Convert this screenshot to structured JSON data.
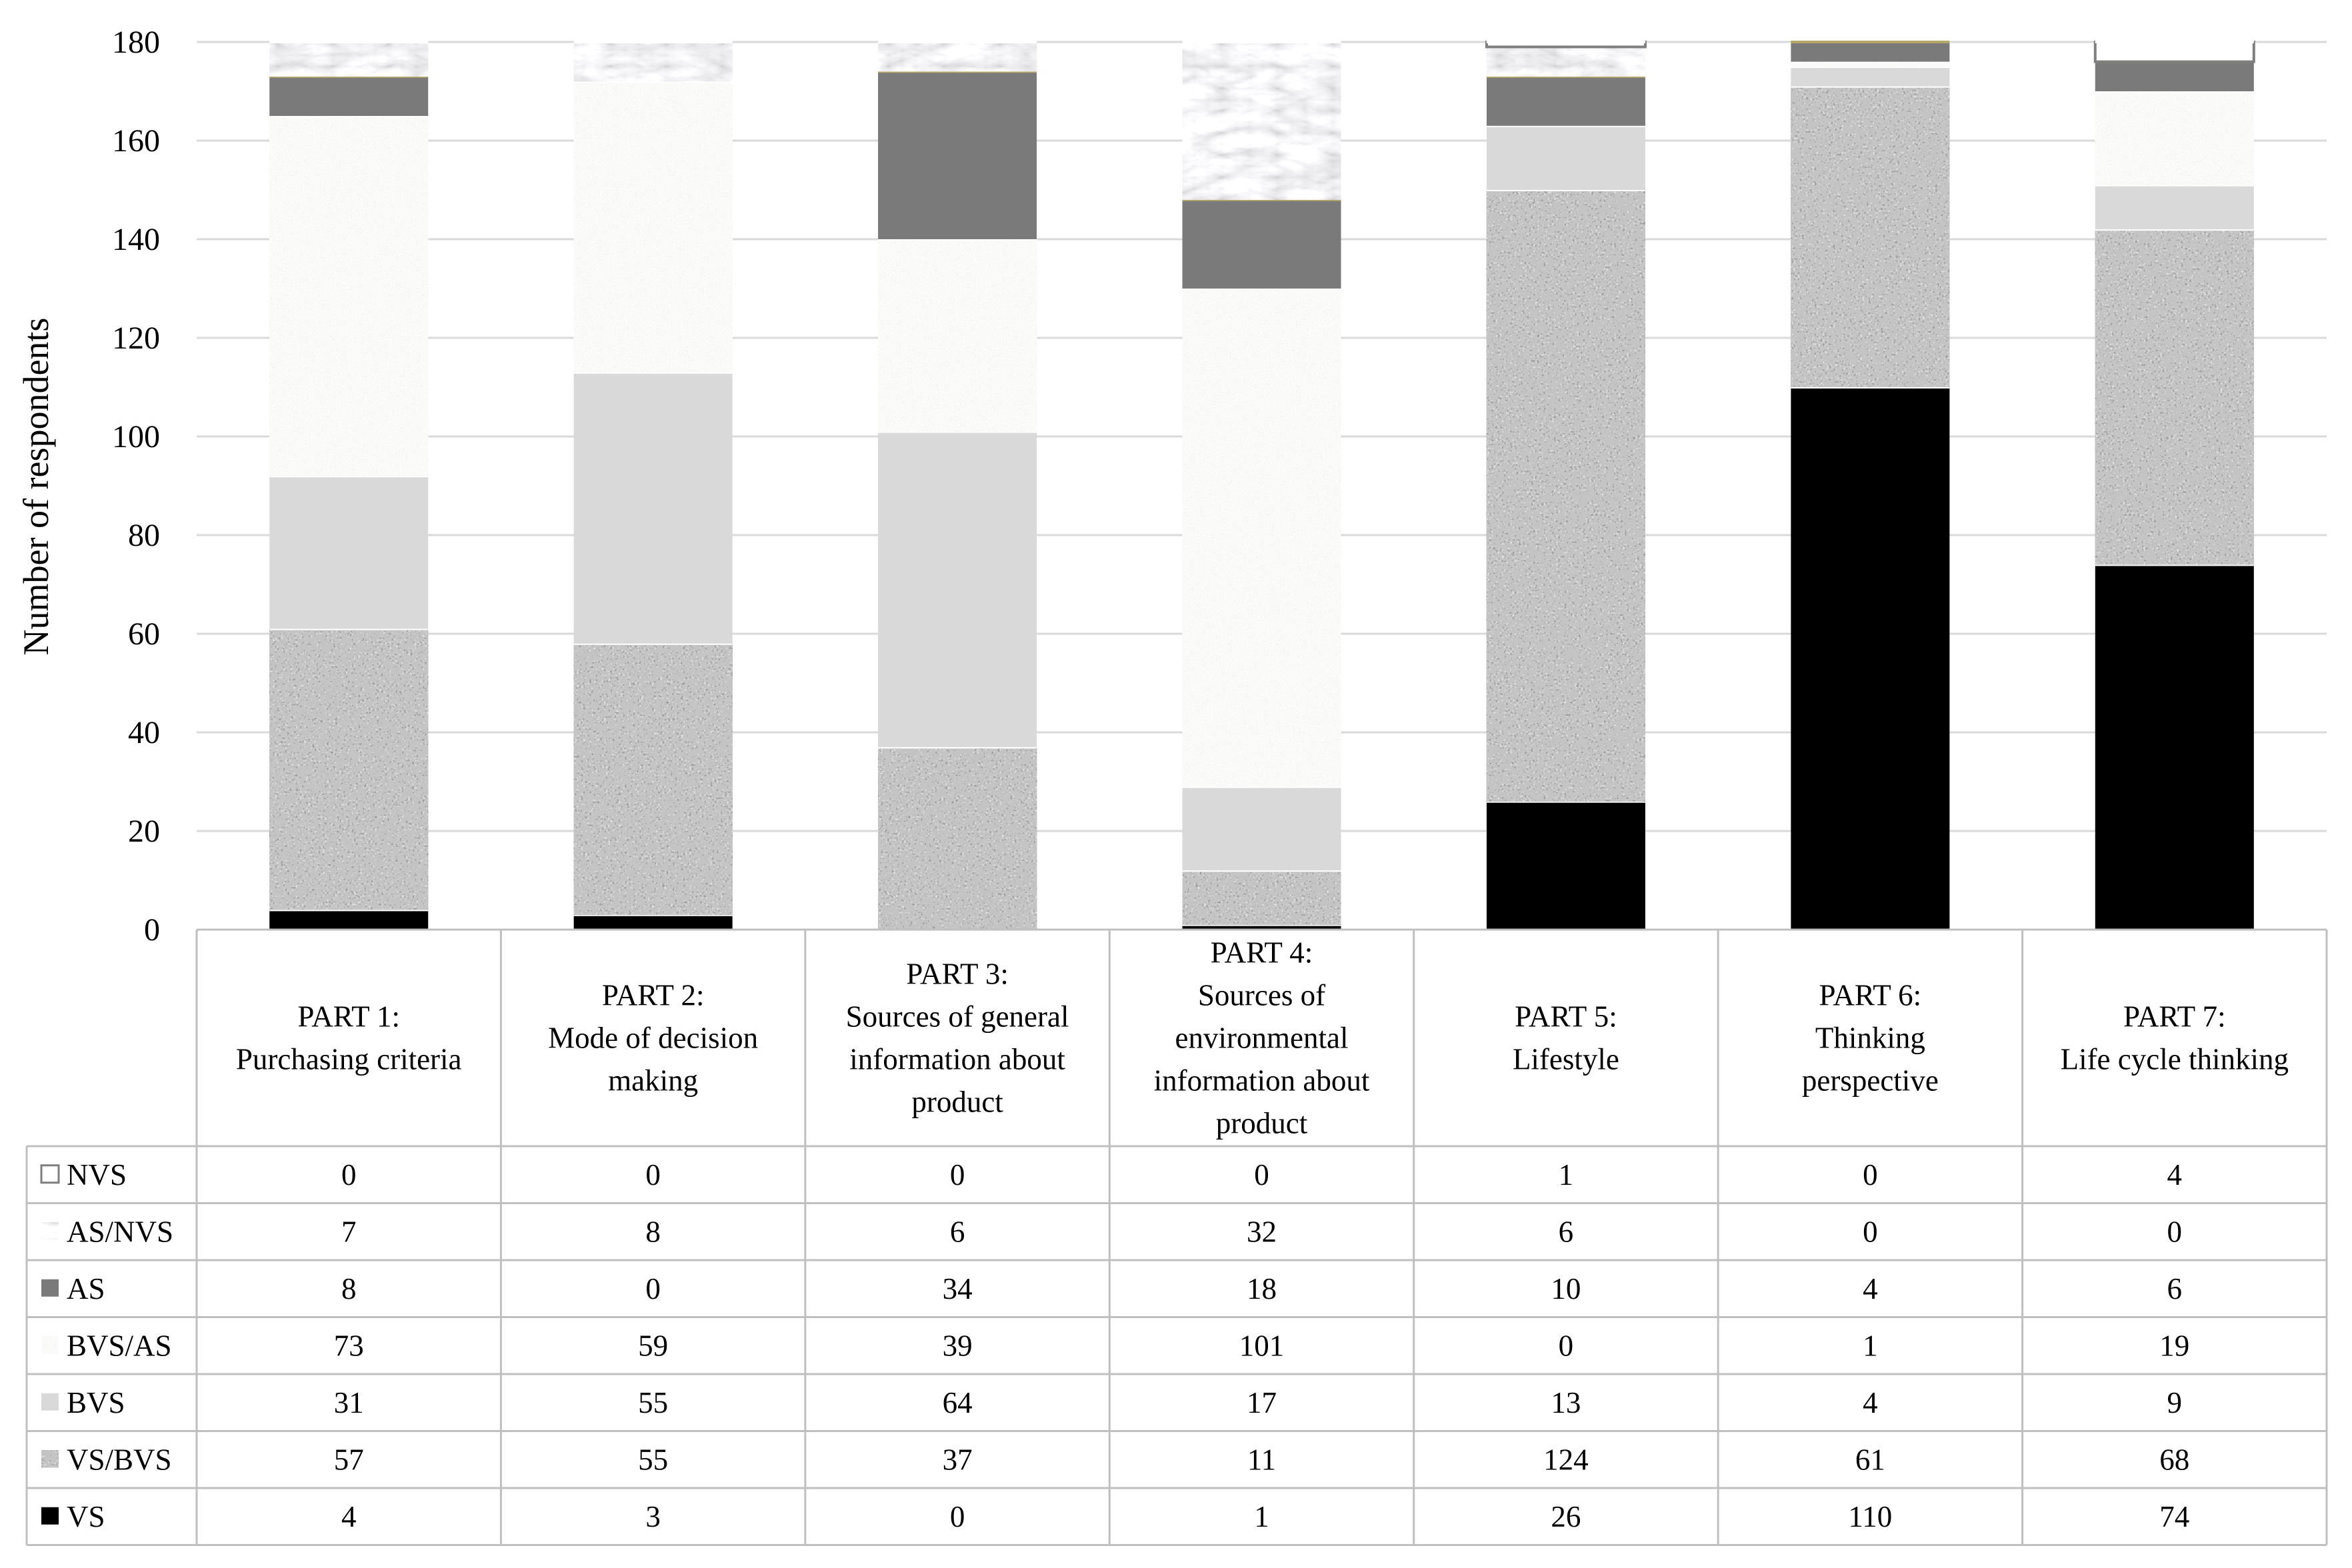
{
  "chart_data": {
    "type": "bar",
    "stacked": true,
    "ylabel": "Number of respondents",
    "xlabel": "",
    "ylim": [
      0,
      180
    ],
    "yticks": [
      0,
      20,
      40,
      60,
      80,
      100,
      120,
      140,
      160,
      180
    ],
    "grid": true,
    "legend": "data-table",
    "categories": [
      [
        "PART 1:",
        "Purchasing criteria"
      ],
      [
        "PART 2:",
        "Mode of decision",
        "making"
      ],
      [
        "PART 3:",
        "Sources of general",
        "information about",
        "product"
      ],
      [
        "PART 4:",
        "Sources of",
        "environmental",
        "information about",
        "product"
      ],
      [
        "PART 5:",
        "Lifestyle"
      ],
      [
        "PART 6:",
        "Thinking",
        "perspective"
      ],
      [
        "PART 7:",
        "Life cycle thinking"
      ]
    ],
    "series": [
      {
        "name": "VS",
        "values": [
          4,
          3,
          0,
          1,
          26,
          110,
          74
        ],
        "color": "#000000",
        "pattern": "solid"
      },
      {
        "name": "VS/BVS",
        "values": [
          57,
          55,
          37,
          11,
          124,
          61,
          68
        ],
        "color": "#8c8c8c",
        "pattern": "granite"
      },
      {
        "name": "BVS",
        "values": [
          31,
          55,
          64,
          17,
          13,
          4,
          9
        ],
        "color": "#d9d9d9",
        "pattern": "solid"
      },
      {
        "name": "BVS/AS",
        "values": [
          73,
          59,
          39,
          101,
          0,
          1,
          19
        ],
        "color": "#ededeb",
        "pattern": "speckle"
      },
      {
        "name": "AS",
        "values": [
          8,
          0,
          34,
          18,
          10,
          4,
          6
        ],
        "color": "#7a7a7a",
        "pattern": "solid"
      },
      {
        "name": "AS/NVS",
        "values": [
          7,
          8,
          6,
          32,
          6,
          0,
          0
        ],
        "color": "#e3e3e3",
        "pattern": "marble"
      },
      {
        "name": "NVS",
        "values": [
          0,
          0,
          0,
          0,
          1,
          0,
          4
        ],
        "color": "#ffffff",
        "pattern": "outline"
      }
    ],
    "table_row_order": [
      "NVS",
      "AS/NVS",
      "AS",
      "BVS/AS",
      "BVS",
      "VS/BVS",
      "VS"
    ]
  }
}
